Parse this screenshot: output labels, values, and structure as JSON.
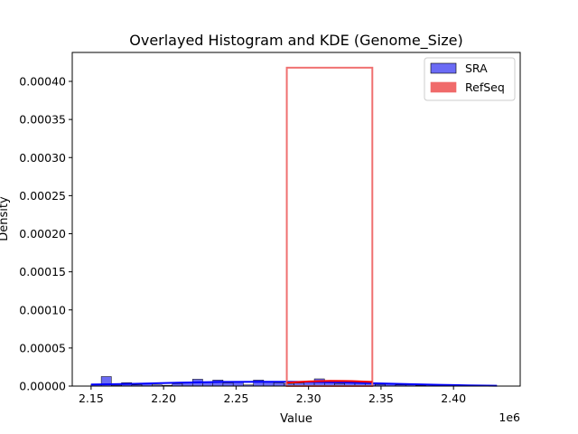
{
  "chart_data": {
    "type": "histogram+kde",
    "title": "Overlayed Histogram and KDE (Genome_Size)",
    "xlabel": "Value",
    "ylabel": "Density",
    "x_offset_label": "1e6",
    "xlim": [
      2.137,
      2.446
    ],
    "ylim": [
      0,
      0.000438
    ],
    "x_ticks": [
      2.15,
      2.2,
      2.25,
      2.3,
      2.35,
      2.4
    ],
    "x_tick_labels": [
      "2.15",
      "2.20",
      "2.25",
      "2.30",
      "2.35",
      "2.40"
    ],
    "y_ticks": [
      0,
      5e-05,
      0.0001,
      0.00015,
      0.0002,
      0.00025,
      0.0003,
      0.00035,
      0.0004
    ],
    "y_tick_labels": [
      "0.00000",
      "0.00005",
      "0.00010",
      "0.00015",
      "0.00020",
      "0.00025",
      "0.00030",
      "0.00035",
      "0.00040"
    ],
    "grid": false,
    "legend_position": "top-right",
    "series": [
      {
        "name": "SRA",
        "color": "#0000ff",
        "bar_color": "#6b6bf5",
        "bins": [
          [
            2.15,
            2.157,
            2.5e-06
          ],
          [
            2.157,
            2.164,
            1.25e-05
          ],
          [
            2.164,
            2.171,
            1.2e-06
          ],
          [
            2.171,
            2.178,
            4.5e-06
          ],
          [
            2.178,
            2.185,
            1.5e-06
          ],
          [
            2.185,
            2.192,
            3e-06
          ],
          [
            2.192,
            2.199,
            1.5e-06
          ],
          [
            2.199,
            2.206,
            1e-06
          ],
          [
            2.206,
            2.213,
            3e-06
          ],
          [
            2.213,
            2.22,
            5e-06
          ],
          [
            2.22,
            2.227,
            9e-06
          ],
          [
            2.227,
            2.234,
            5e-06
          ],
          [
            2.234,
            2.241,
            8e-06
          ],
          [
            2.241,
            2.248,
            4e-06
          ],
          [
            2.248,
            2.255,
            5e-06
          ],
          [
            2.255,
            2.262,
            1.5e-06
          ],
          [
            2.262,
            2.269,
            8e-06
          ],
          [
            2.269,
            2.276,
            5e-06
          ],
          [
            2.276,
            2.283,
            4e-06
          ],
          [
            2.283,
            2.29,
            3e-06
          ],
          [
            2.29,
            2.297,
            4e-06
          ],
          [
            2.297,
            2.304,
            6e-06
          ],
          [
            2.304,
            2.311,
            9.5e-06
          ],
          [
            2.311,
            2.318,
            6e-06
          ],
          [
            2.318,
            2.325,
            3e-06
          ],
          [
            2.325,
            2.332,
            4e-06
          ],
          [
            2.332,
            2.339,
            5e-06
          ],
          [
            2.339,
            2.346,
            4e-06
          ],
          [
            2.346,
            2.353,
            2e-06
          ],
          [
            2.353,
            2.36,
            3e-06
          ],
          [
            2.36,
            2.367,
            1.5e-06
          ],
          [
            2.367,
            2.374,
            1.5e-06
          ],
          [
            2.374,
            2.381,
            1e-06
          ],
          [
            2.381,
            2.388,
            5e-07
          ]
        ],
        "kde": [
          [
            2.15,
            2e-06
          ],
          [
            2.18,
            3e-06
          ],
          [
            2.21,
            4.5e-06
          ],
          [
            2.24,
            5.5e-06
          ],
          [
            2.27,
            5.7e-06
          ],
          [
            2.3,
            5.5e-06
          ],
          [
            2.33,
            4.5e-06
          ],
          [
            2.36,
            3e-06
          ],
          [
            2.39,
            1.7e-06
          ],
          [
            2.41,
            1e-06
          ],
          [
            2.43,
            5e-07
          ]
        ]
      },
      {
        "name": "RefSeq",
        "color": "#ff0000",
        "bar_color": "#f07070",
        "bins": [
          [
            2.285,
            2.344,
            0.000418
          ]
        ],
        "kde": [
          [
            2.285,
            4.5e-06
          ],
          [
            2.3,
            6e-06
          ],
          [
            2.315,
            6.8e-06
          ],
          [
            2.33,
            6.5e-06
          ],
          [
            2.344,
            5.5e-06
          ]
        ]
      }
    ]
  }
}
